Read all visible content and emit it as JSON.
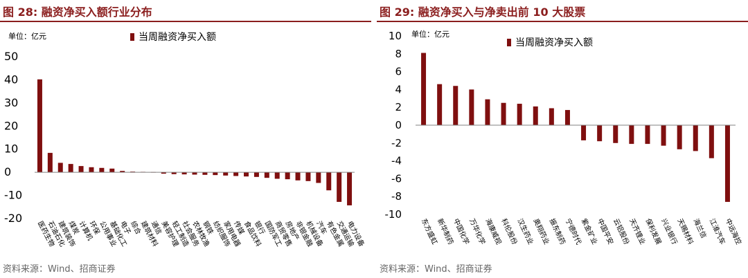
{
  "left": {
    "title": "图 28:  融资净买入额行业分布",
    "source": "资料来源：Wind、招商证券"
  },
  "right": {
    "title": "图 29:  融资净买入与净卖出前 10 大股票",
    "source": "资料来源：Wind、招商证券"
  },
  "colors": {
    "bar": "#7f0f0f",
    "accent": "#8b1e1e"
  },
  "chart_data": [
    {
      "type": "bar",
      "unit_label": "单位：亿元",
      "legend": "当周融资净买入额",
      "legend_position": "top",
      "grid": false,
      "ylim": [
        -20,
        50
      ],
      "yticks": [
        -20,
        -10,
        0,
        10,
        20,
        30,
        40,
        50
      ],
      "categories": [
        "医药生物",
        "石油石化",
        "建筑装饰",
        "煤炭",
        "计算机",
        "环保",
        "公用事业",
        "基础化工",
        "电子",
        "综合",
        "建筑材料",
        "通信",
        "美容护理",
        "轻工制造",
        "社会服务",
        "农林牧渔",
        "钢铁",
        "纺织服饰",
        "家用电器",
        "传媒",
        "食品饮料",
        "银行",
        "国防军工",
        "商贸零售",
        "房地产",
        "非银金融",
        "机械设备",
        "汽车",
        "有色金属",
        "交通运输",
        "电力设备"
      ],
      "values": [
        40.2,
        8.4,
        4.1,
        3.6,
        2.7,
        2.2,
        1.9,
        1.6,
        0.6,
        0.3,
        0.2,
        0.1,
        -0.6,
        -0.8,
        -0.9,
        -1.0,
        -1.1,
        -1.2,
        -1.4,
        -1.6,
        -1.8,
        -2.0,
        -2.4,
        -2.8,
        -3.0,
        -3.5,
        -3.8,
        -4.6,
        -7.8,
        -12.8,
        -14.3
      ]
    },
    {
      "type": "bar",
      "unit_label": "单位：亿元",
      "legend": "当周融资净买入额",
      "legend_position": "top",
      "grid": false,
      "ylim": [
        -10,
        10
      ],
      "yticks": [
        -10,
        -8,
        -6,
        -4,
        -2,
        0,
        2,
        4,
        6,
        8,
        10
      ],
      "categories": [
        "东方盛虹",
        "新华制药",
        "中国化学",
        "万华化学",
        "海康威视",
        "科伦股份",
        "汉生药业",
        "奥翔药业",
        "振东制药",
        "宁德时代",
        "紫金矿业",
        "中国平安",
        "云铝股份",
        "天齐锂业",
        "保利发展",
        "兴业银行",
        "天赐材料",
        "海兰信",
        "江淮汽车",
        "中远海控"
      ],
      "values": [
        8.1,
        4.6,
        4.4,
        4.0,
        2.9,
        2.5,
        2.4,
        2.1,
        1.9,
        1.7,
        -1.7,
        -1.8,
        -2.0,
        -2.1,
        -2.1,
        -2.3,
        -2.7,
        -2.9,
        -3.7,
        -8.6
      ]
    }
  ]
}
